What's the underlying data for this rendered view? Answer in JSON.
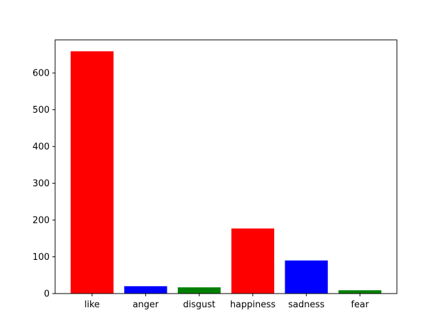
{
  "chart_data": {
    "type": "bar",
    "categories": [
      "like",
      "anger",
      "disgust",
      "happiness",
      "sadness",
      "fear"
    ],
    "values": [
      659,
      20,
      17,
      177,
      90,
      9
    ],
    "bar_colors": [
      "#ff0000",
      "#0000ff",
      "#008000",
      "#ff0000",
      "#0000ff",
      "#008000"
    ],
    "title": "",
    "xlabel": "",
    "ylabel": "",
    "ylim": [
      0,
      690
    ],
    "yticks": [
      0,
      100,
      200,
      300,
      400,
      500,
      600
    ],
    "grid": false,
    "legend": "none"
  }
}
